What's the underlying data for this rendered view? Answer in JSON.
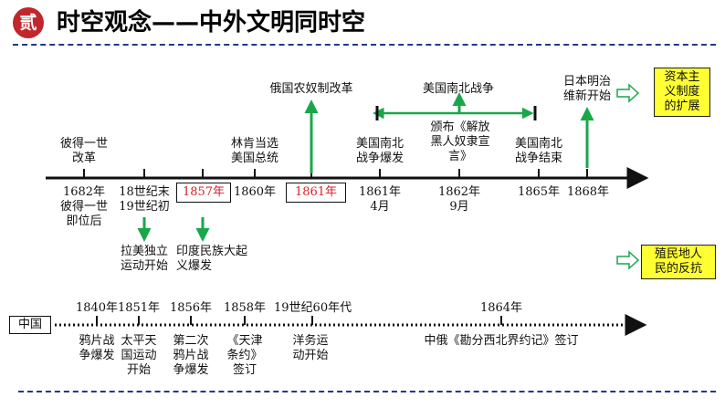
{
  "header": {
    "badge": "贰",
    "title": "时空观念——中外文明同时空"
  },
  "world_timeline": {
    "above": [
      {
        "id": "peter",
        "text": "彼得一世\n改革"
      },
      {
        "id": "lincoln",
        "text": "林肯当选\n美国总统"
      },
      {
        "id": "russia",
        "text": "俄国农奴制改革"
      },
      {
        "id": "us_civil_war",
        "text": "美国南北战争"
      },
      {
        "id": "us_start",
        "text": "美国南北\n战争爆发"
      },
      {
        "id": "proclamation",
        "text": "颁布《解放\n黑人奴隶宣\n言》"
      },
      {
        "id": "us_end",
        "text": "美国南北\n战争结束"
      },
      {
        "id": "meiji",
        "text": "日本明治\n维新开始"
      }
    ],
    "below": [
      {
        "id": "1682",
        "text": "1682年\n彼得一世\n即位后"
      },
      {
        "id": "18c",
        "text": "18世纪末\n19世纪初"
      },
      {
        "id": "1857",
        "text": "1857年"
      },
      {
        "id": "1860",
        "text": "1860年"
      },
      {
        "id": "1861b",
        "text": "1861年"
      },
      {
        "id": "1861",
        "text": "1861年\n4月"
      },
      {
        "id": "1862",
        "text": "1862年\n9月"
      },
      {
        "id": "1865",
        "text": "1865年"
      },
      {
        "id": "1868",
        "text": "1868年"
      }
    ],
    "lower_events": [
      {
        "id": "latin",
        "text": "拉美独立\n运动开始"
      },
      {
        "id": "india",
        "text": "印度民族大起\n义爆发"
      }
    ]
  },
  "legend": {
    "capitalism": "资本主\n义制度\n的扩展",
    "colonial": "殖民地人\n民的反抗"
  },
  "china_timeline": {
    "label": "中国",
    "years": [
      {
        "id": "1840",
        "text": "1840年"
      },
      {
        "id": "1851",
        "text": "1851年"
      },
      {
        "id": "1856",
        "text": "1856年"
      },
      {
        "id": "1858",
        "text": "1858年"
      },
      {
        "id": "1860s",
        "text": "19世纪60年代"
      },
      {
        "id": "1864",
        "text": "1864年"
      }
    ],
    "events": [
      {
        "id": "opium1",
        "text": "鸦片战\n争爆发"
      },
      {
        "id": "taiping",
        "text": "太平天\n国运动\n开始"
      },
      {
        "id": "opium2",
        "text": "第二次\n鸦片战\n争爆发"
      },
      {
        "id": "tianjin",
        "text": "《天津\n条约》\n签订"
      },
      {
        "id": "yangwu",
        "text": "洋务运\n动开始"
      },
      {
        "id": "treaty1864",
        "text": "中俄《勘分西北界约记》签订"
      }
    ]
  },
  "colors": {
    "badge": "#c0262c",
    "green_arrow": "#19a74a",
    "highlight_red": "#d91f26",
    "legend_fill": "#ffff33",
    "rule": "#1f3a8a"
  }
}
